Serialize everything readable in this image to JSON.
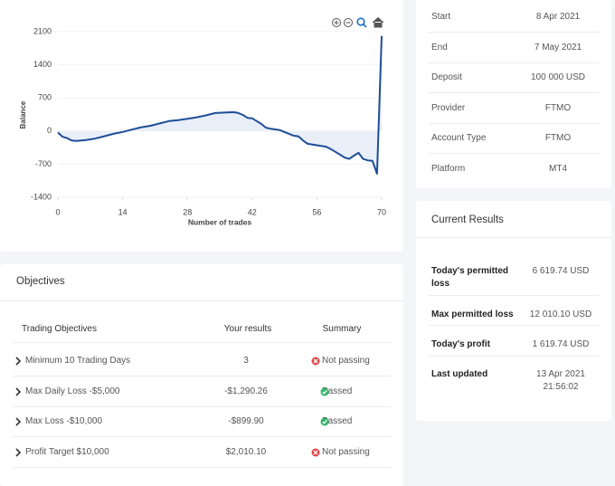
{
  "chart_data": {
    "type": "line",
    "ylabel": "Balance",
    "xlabel": "Number of trades",
    "color": "#1f4e96",
    "x": [
      0,
      1,
      2,
      3,
      4,
      5,
      6,
      8,
      10,
      12,
      14,
      16,
      18,
      20,
      22,
      24,
      26,
      28,
      30,
      32,
      34,
      36,
      38,
      39,
      40,
      41,
      42,
      43,
      44,
      45,
      46,
      48,
      50,
      51,
      52,
      53,
      54,
      56,
      58,
      59,
      60,
      61,
      62,
      63,
      64,
      65,
      66,
      67,
      68,
      69,
      70
    ],
    "values": [
      -30,
      -120,
      -150,
      -200,
      -210,
      -200,
      -190,
      -160,
      -110,
      -60,
      -20,
      30,
      80,
      110,
      160,
      210,
      230,
      260,
      290,
      330,
      380,
      390,
      400,
      380,
      340,
      280,
      270,
      210,
      150,
      70,
      50,
      20,
      -60,
      -100,
      -110,
      -200,
      -270,
      -300,
      -330,
      -380,
      -440,
      -500,
      -560,
      -590,
      -520,
      -460,
      -590,
      -620,
      -630,
      -900,
      2010.1
    ],
    "xlim": [
      0,
      70
    ],
    "xticks": [
      0,
      14,
      28,
      42,
      56,
      70
    ],
    "ylim": [
      -1400,
      2100
    ],
    "yticks": [
      2100,
      1400,
      700,
      0,
      -700,
      -1400
    ]
  },
  "info": [
    {
      "label": "Start",
      "value": "8 Apr 2021"
    },
    {
      "label": "End",
      "value": "7 May 2021"
    },
    {
      "label": "Deposit",
      "value": "100 000 USD"
    },
    {
      "label": "Provider",
      "value": "FTMO"
    },
    {
      "label": "Account Type",
      "value": "FTMO"
    },
    {
      "label": "Platform",
      "value": "MT4"
    }
  ],
  "current_results": {
    "title": "Current Results",
    "rows": [
      {
        "label": "Today's permitted loss",
        "value": "6 619.74 USD"
      },
      {
        "label": "Max permitted loss",
        "value": "12 010.10 USD"
      },
      {
        "label": "Today's profit",
        "value": "1 619.74 USD"
      },
      {
        "label": "Last updated",
        "value": "13 Apr 2021 21:56:02"
      }
    ]
  },
  "objectives": {
    "title": "Objectives",
    "headers": [
      "Trading Objectives",
      "Your results",
      "Summary"
    ],
    "rows": [
      {
        "name": "Minimum 10 Trading Days",
        "result": "3",
        "status": "Not passing"
      },
      {
        "name": "Max Daily Loss -$5,000",
        "result": "-$1,290.26",
        "status": "Passed"
      },
      {
        "name": "Max Loss -$10,000",
        "result": "-$899.90",
        "status": "Passed"
      },
      {
        "name": "Profit Target $10,000",
        "result": "$2,010.10",
        "status": "Not passing"
      }
    ]
  }
}
